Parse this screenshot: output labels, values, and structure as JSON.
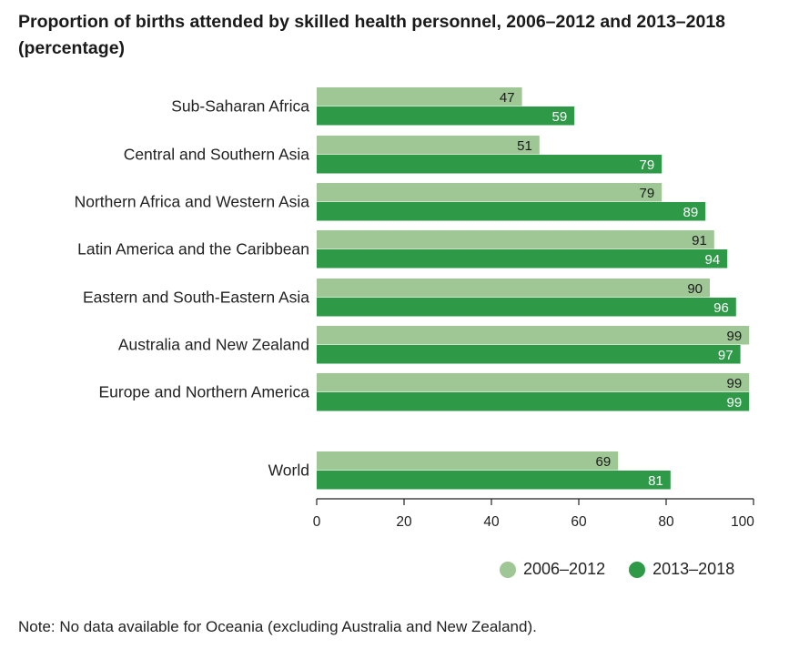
{
  "title": "Proportion of births attended by skilled health personnel, 2006–2012 and 2013–2018 (percentage)",
  "note": "Note: No data available for Oceania (excluding Australia and New Zealand).",
  "colors": {
    "series_2006_2012": "#9fc795",
    "series_2013_2018": "#2e9a48",
    "axis": "#222222",
    "label_dark": "#1a1a1a",
    "label_light": "#ffffff"
  },
  "chart_data": {
    "type": "bar",
    "orientation": "horizontal",
    "categories": [
      "Sub-Saharan Africa",
      "Central and Southern Asia",
      "Northern Africa and Western Asia",
      "Latin America and the Caribbean",
      "Eastern and South-Eastern Asia",
      "Australia and New Zealand",
      "Europe and Northern America",
      "World"
    ],
    "series": [
      {
        "name": "2006–2012",
        "values": [
          47,
          51,
          79,
          91,
          90,
          99,
          99,
          69
        ]
      },
      {
        "name": "2013–2018",
        "values": [
          59,
          79,
          89,
          94,
          96,
          97,
          99,
          81
        ]
      }
    ],
    "xlim": [
      0,
      100
    ],
    "xticks": [
      0,
      20,
      40,
      60,
      80,
      100
    ],
    "grid": false,
    "legend_position": "bottom-right",
    "data_labels": true
  }
}
